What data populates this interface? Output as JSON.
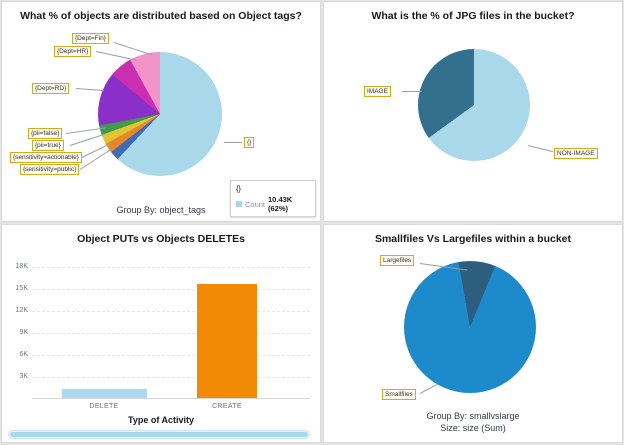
{
  "chart_data": [
    {
      "type": "pie",
      "title": "What % of objects are distributed based on Object tags?",
      "footer": "Group By: object_tags",
      "legend": {
        "header": "{}",
        "series": "Count",
        "value": "10.43K (62%)"
      },
      "slices": [
        {
          "label": "{}",
          "pct": 62,
          "color": "#a8d8ea"
        },
        {
          "label": "{sensitivity=public}",
          "pct": 2.5,
          "color": "#3f6db5"
        },
        {
          "label": "{sensitivity=actionable}",
          "pct": 2.5,
          "color": "#e8872a"
        },
        {
          "label": "{pii=true}",
          "pct": 2.5,
          "color": "#e3c62f"
        },
        {
          "label": "{pii=false}",
          "pct": 2.5,
          "color": "#3e9c4f"
        },
        {
          "label": "{Dept=RD}",
          "pct": 14,
          "color": "#8b2fc9"
        },
        {
          "label": "{Dept=HR}",
          "pct": 6,
          "color": "#c92fb0"
        },
        {
          "label": "{Dept=Fin}",
          "pct": 8,
          "color": "#f293c9"
        }
      ]
    },
    {
      "type": "pie",
      "title": "What is the % of JPG files in the bucket?",
      "slices": [
        {
          "label": "NON-IMAGE",
          "pct": 65,
          "color": "#a8d8ea"
        },
        {
          "label": "IMAGE",
          "pct": 35,
          "color": "#33708e"
        }
      ]
    },
    {
      "type": "bar",
      "title": "Object PUTs vs Objects DELETEs",
      "xlabel": "Type of Activity",
      "categories": [
        "DELETE",
        "CREATE"
      ],
      "values": [
        1200,
        15600
      ],
      "colors": [
        "#a9d9ef",
        "#f28a05"
      ],
      "ylim": [
        0,
        18000
      ],
      "yticks": [
        "18K",
        "15K",
        "12K",
        "9K",
        "6K",
        "3K"
      ]
    },
    {
      "type": "pie",
      "title": "Smallfiles Vs Largefiles within a bucket",
      "footer_group": "Group By: smallvslarge",
      "footer_size": "Size: size (Sum)",
      "slices": [
        {
          "label": "Largefiles",
          "pct": 9,
          "color": "#2e5e7e"
        },
        {
          "label": "Smallfiles",
          "pct": 91,
          "color": "#1d8bcb"
        }
      ]
    }
  ]
}
